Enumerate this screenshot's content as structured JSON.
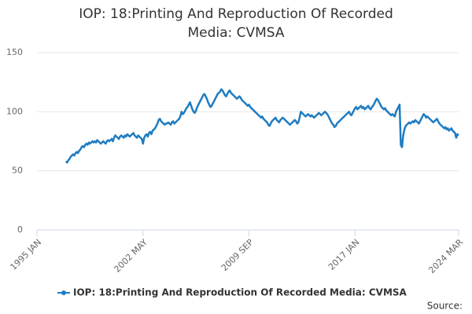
{
  "chart_data": {
    "type": "line",
    "title": "IOP: 18:Printing And Reproduction Of Recorded Media: CVMSA",
    "source": "Source:",
    "grid": true,
    "xlim": [
      "1995-01",
      "2024-03"
    ],
    "xticks": [
      {
        "value": "1995-01",
        "label": "1995 JAN"
      },
      {
        "value": "2002-05",
        "label": "2002 MAY"
      },
      {
        "value": "2009-09",
        "label": "2009 SEP"
      },
      {
        "value": "2017-01",
        "label": "2017 JAN"
      },
      {
        "value": "2024-03",
        "label": "2024 MAR"
      }
    ],
    "ylim": [
      0,
      150
    ],
    "yticks": [
      0,
      50,
      100,
      150
    ],
    "x": [
      "1997-01",
      "1997-02",
      "1997-03",
      "1997-04",
      "1997-05",
      "1997-06",
      "1997-07",
      "1997-08",
      "1997-09",
      "1997-10",
      "1997-11",
      "1997-12",
      "1998-01",
      "1998-02",
      "1998-03",
      "1998-04",
      "1998-05",
      "1998-06",
      "1998-07",
      "1998-08",
      "1998-09",
      "1998-10",
      "1998-11",
      "1998-12",
      "1999-01",
      "1999-02",
      "1999-03",
      "1999-04",
      "1999-05",
      "1999-06",
      "1999-07",
      "1999-08",
      "1999-09",
      "1999-10",
      "1999-11",
      "1999-12",
      "2000-01",
      "2000-02",
      "2000-03",
      "2000-04",
      "2000-05",
      "2000-06",
      "2000-07",
      "2000-08",
      "2000-09",
      "2000-10",
      "2000-11",
      "2000-12",
      "2001-01",
      "2001-02",
      "2001-03",
      "2001-04",
      "2001-05",
      "2001-06",
      "2001-07",
      "2001-08",
      "2001-09",
      "2001-10",
      "2001-11",
      "2001-12",
      "2002-01",
      "2002-02",
      "2002-03",
      "2002-04",
      "2002-05",
      "2002-06",
      "2002-07",
      "2002-08",
      "2002-09",
      "2002-10",
      "2002-11",
      "2002-12",
      "2003-01",
      "2003-02",
      "2003-03",
      "2003-04",
      "2003-05",
      "2003-06",
      "2003-07",
      "2003-08",
      "2003-09",
      "2003-10",
      "2003-11",
      "2003-12",
      "2004-01",
      "2004-02",
      "2004-03",
      "2004-04",
      "2004-05",
      "2004-06",
      "2004-07",
      "2004-08",
      "2004-09",
      "2004-10",
      "2004-11",
      "2004-12",
      "2005-01",
      "2005-02",
      "2005-03",
      "2005-04",
      "2005-05",
      "2005-06",
      "2005-07",
      "2005-08",
      "2005-09",
      "2005-10",
      "2005-11",
      "2005-12",
      "2006-01",
      "2006-02",
      "2006-03",
      "2006-04",
      "2006-05",
      "2006-06",
      "2006-07",
      "2006-08",
      "2006-09",
      "2006-10",
      "2006-11",
      "2006-12",
      "2007-01",
      "2007-02",
      "2007-03",
      "2007-04",
      "2007-05",
      "2007-06",
      "2007-07",
      "2007-08",
      "2007-09",
      "2007-10",
      "2007-11",
      "2007-12",
      "2008-01",
      "2008-02",
      "2008-03",
      "2008-04",
      "2008-05",
      "2008-06",
      "2008-07",
      "2008-08",
      "2008-09",
      "2008-10",
      "2008-11",
      "2008-12",
      "2009-01",
      "2009-02",
      "2009-03",
      "2009-04",
      "2009-05",
      "2009-06",
      "2009-07",
      "2009-08",
      "2009-09",
      "2009-10",
      "2009-11",
      "2009-12",
      "2010-01",
      "2010-02",
      "2010-03",
      "2010-04",
      "2010-05",
      "2010-06",
      "2010-07",
      "2010-08",
      "2010-09",
      "2010-10",
      "2010-11",
      "2010-12",
      "2011-01",
      "2011-02",
      "2011-03",
      "2011-04",
      "2011-05",
      "2011-06",
      "2011-07",
      "2011-08",
      "2011-09",
      "2011-10",
      "2011-11",
      "2011-12",
      "2012-01",
      "2012-02",
      "2012-03",
      "2012-04",
      "2012-05",
      "2012-06",
      "2012-07",
      "2012-08",
      "2012-09",
      "2012-10",
      "2012-11",
      "2012-12",
      "2013-01",
      "2013-02",
      "2013-03",
      "2013-04",
      "2013-05",
      "2013-06",
      "2013-07",
      "2013-08",
      "2013-09",
      "2013-10",
      "2013-11",
      "2013-12",
      "2014-01",
      "2014-02",
      "2014-03",
      "2014-04",
      "2014-05",
      "2014-06",
      "2014-07",
      "2014-08",
      "2014-09",
      "2014-10",
      "2014-11",
      "2014-12",
      "2015-01",
      "2015-02",
      "2015-03",
      "2015-04",
      "2015-05",
      "2015-06",
      "2015-07",
      "2015-08",
      "2015-09",
      "2015-10",
      "2015-11",
      "2015-12",
      "2016-01",
      "2016-02",
      "2016-03",
      "2016-04",
      "2016-05",
      "2016-06",
      "2016-07",
      "2016-08",
      "2016-09",
      "2016-10",
      "2016-11",
      "2016-12",
      "2017-01",
      "2017-02",
      "2017-03",
      "2017-04",
      "2017-05",
      "2017-06",
      "2017-07",
      "2017-08",
      "2017-09",
      "2017-10",
      "2017-11",
      "2017-12",
      "2018-01",
      "2018-02",
      "2018-03",
      "2018-04",
      "2018-05",
      "2018-06",
      "2018-07",
      "2018-08",
      "2018-09",
      "2018-10",
      "2018-11",
      "2018-12",
      "2019-01",
      "2019-02",
      "2019-03",
      "2019-04",
      "2019-05",
      "2019-06",
      "2019-07",
      "2019-08",
      "2019-09",
      "2019-10",
      "2019-11",
      "2019-12",
      "2020-01",
      "2020-02",
      "2020-03",
      "2020-04",
      "2020-05",
      "2020-06",
      "2020-07",
      "2020-08",
      "2020-09",
      "2020-10",
      "2020-11",
      "2020-12",
      "2021-01",
      "2021-02",
      "2021-03",
      "2021-04",
      "2021-05",
      "2021-06",
      "2021-07",
      "2021-08",
      "2021-09",
      "2021-10",
      "2021-11",
      "2021-12",
      "2022-01",
      "2022-02",
      "2022-03",
      "2022-04",
      "2022-05",
      "2022-06",
      "2022-07",
      "2022-08",
      "2022-09",
      "2022-10",
      "2022-11",
      "2022-12",
      "2023-01",
      "2023-02",
      "2023-03",
      "2023-04",
      "2023-05",
      "2023-06",
      "2023-07",
      "2023-08",
      "2023-09",
      "2023-10",
      "2023-11",
      "2023-12",
      "2024-01",
      "2024-02",
      "2024-03"
    ],
    "series": [
      {
        "name": "IOP: 18:Printing And Reproduction Of Recorded Media: CVMSA",
        "color": "#1f7cc1",
        "values": [
          58,
          57,
          59,
          60,
          62,
          63,
          64,
          63,
          65,
          66,
          65,
          67,
          68,
          70,
          71,
          70,
          72,
          73,
          72,
          74,
          73,
          74,
          75,
          74,
          75,
          74,
          76,
          75,
          74,
          73,
          74,
          75,
          74,
          73,
          75,
          76,
          75,
          76,
          77,
          75,
          78,
          80,
          79,
          78,
          77,
          79,
          80,
          79,
          78,
          80,
          79,
          81,
          80,
          79,
          80,
          81,
          82,
          80,
          79,
          78,
          80,
          79,
          78,
          77,
          73,
          78,
          80,
          81,
          79,
          82,
          83,
          81,
          84,
          85,
          86,
          88,
          90,
          93,
          94,
          92,
          91,
          90,
          89,
          90,
          90,
          91,
          90,
          89,
          91,
          92,
          90,
          91,
          92,
          93,
          94,
          96,
          100,
          98,
          99,
          101,
          103,
          104,
          106,
          108,
          105,
          102,
          100,
          99,
          101,
          104,
          106,
          108,
          110,
          112,
          114,
          115,
          113,
          111,
          108,
          106,
          104,
          105,
          107,
          109,
          111,
          113,
          115,
          116,
          117,
          119,
          118,
          116,
          114,
          113,
          115,
          117,
          118,
          116,
          115,
          114,
          113,
          112,
          111,
          112,
          113,
          112,
          110,
          109,
          108,
          107,
          106,
          105,
          106,
          104,
          103,
          102,
          101,
          100,
          99,
          98,
          97,
          96,
          95,
          96,
          94,
          93,
          92,
          91,
          89,
          88,
          90,
          92,
          93,
          94,
          95,
          93,
          92,
          91,
          93,
          94,
          95,
          94,
          93,
          92,
          91,
          90,
          89,
          90,
          91,
          92,
          93,
          92,
          90,
          91,
          95,
          100,
          99,
          98,
          97,
          96,
          97,
          98,
          97,
          96,
          97,
          96,
          95,
          96,
          97,
          98,
          99,
          98,
          97,
          98,
          99,
          100,
          99,
          98,
          96,
          94,
          92,
          90,
          89,
          87,
          88,
          90,
          91,
          92,
          93,
          94,
          95,
          96,
          97,
          98,
          99,
          100,
          98,
          97,
          99,
          101,
          103,
          104,
          102,
          103,
          104,
          105,
          103,
          104,
          102,
          103,
          104,
          105,
          103,
          102,
          104,
          105,
          107,
          109,
          111,
          110,
          108,
          106,
          104,
          103,
          102,
          103,
          101,
          100,
          99,
          98,
          97,
          98,
          97,
          96,
          100,
          102,
          104,
          106,
          72,
          70,
          80,
          85,
          88,
          89,
          90,
          91,
          90,
          91,
          92,
          91,
          93,
          92,
          91,
          90,
          92,
          94,
          96,
          98,
          97,
          95,
          96,
          95,
          94,
          93,
          92,
          91,
          92,
          93,
          94,
          92,
          90,
          89,
          88,
          87,
          86,
          87,
          85,
          86,
          84,
          85,
          86,
          84,
          83,
          82,
          78,
          81,
          80
        ]
      }
    ]
  }
}
